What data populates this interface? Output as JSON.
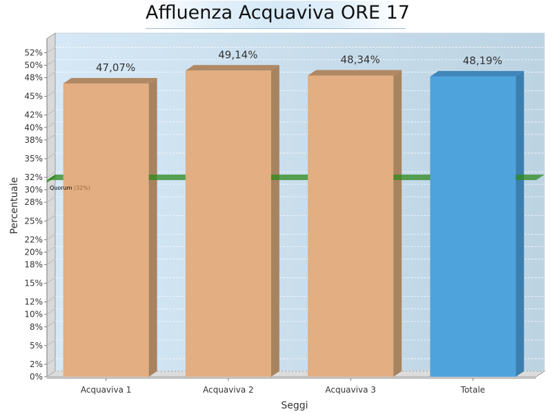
{
  "chart_data": {
    "type": "bar",
    "title": "Affluenza Acquaviva ORE 17",
    "xlabel": "Seggi",
    "ylabel": "Percentuale",
    "categories": [
      "Acquaviva 1",
      "Acquaviva 2",
      "Acquaviva 3",
      "Totale"
    ],
    "values": [
      47.07,
      49.14,
      48.34,
      48.19
    ],
    "value_labels": [
      "47,07%",
      "49,14%",
      "48,34%",
      "48,19%"
    ],
    "ylim": [
      0,
      53
    ],
    "yticks": [
      0,
      2,
      5,
      8,
      10,
      12,
      15,
      18,
      20,
      22,
      25,
      28,
      30,
      32,
      35,
      38,
      40,
      42,
      45,
      48,
      50,
      52
    ],
    "ytick_labels": [
      "0%",
      "2%",
      "5%",
      "8%",
      "10%",
      "12%",
      "15%",
      "18%",
      "20%",
      "22%",
      "25%",
      "28%",
      "30%",
      "32%",
      "35%",
      "38%",
      "40%",
      "42%",
      "45%",
      "48%",
      "50%",
      "52%"
    ],
    "quorum": {
      "value": 32,
      "label": "Quorum",
      "value_text": "(32%)"
    },
    "colors": {
      "bar": "#e2ae82",
      "total_bar": "#4fa3dc",
      "quorum": "#2f8a1e"
    },
    "grid": true
  }
}
